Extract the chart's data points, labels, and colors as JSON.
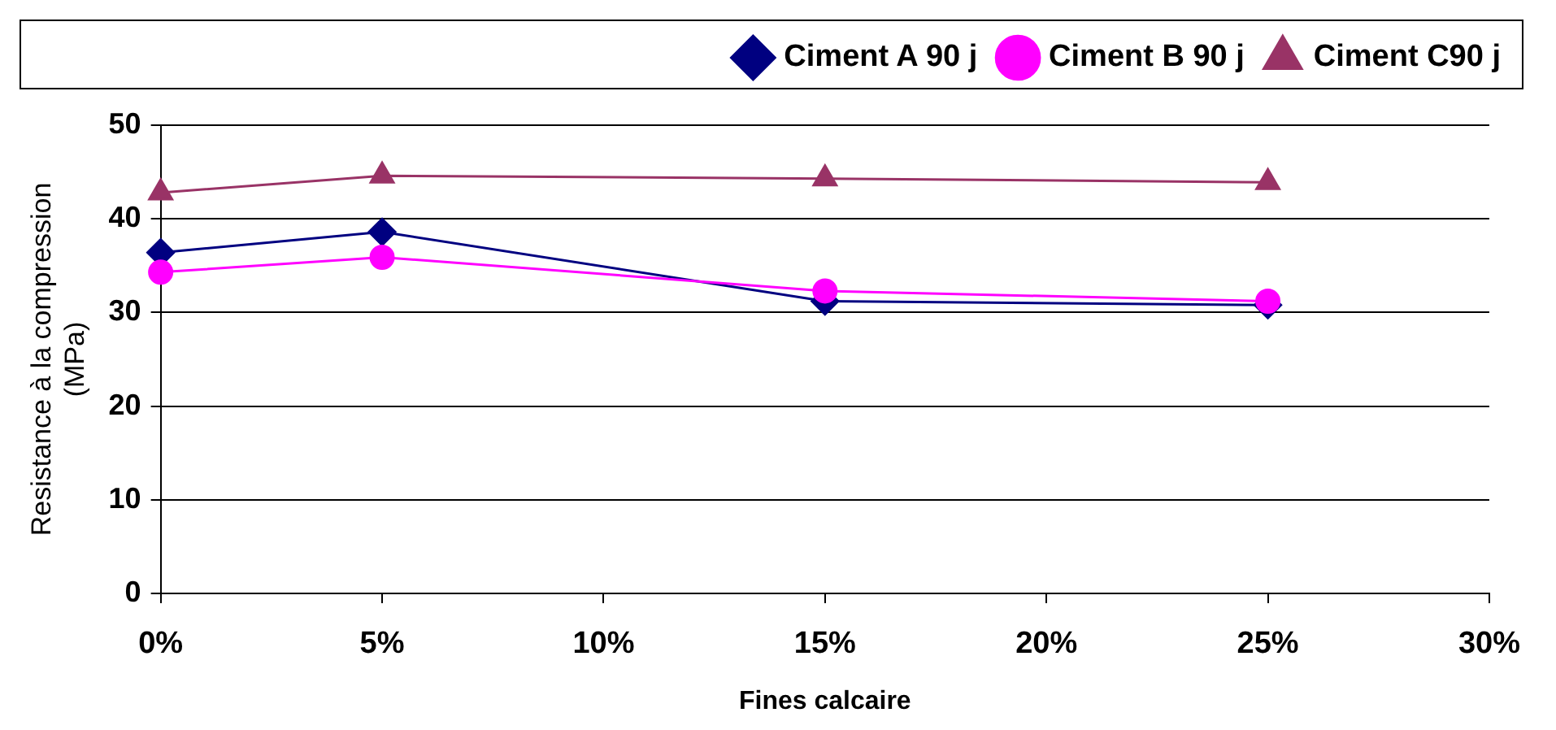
{
  "chart_data": {
    "type": "line",
    "xlabel": "Fines calcaire",
    "ylabel": "Resistance à la compression\n(MPa)",
    "x": [
      0,
      5,
      15,
      25
    ],
    "series": [
      {
        "name": "Ciment A 90 j",
        "color": "#000080",
        "marker": "diamond",
        "values": [
          36.4,
          38.6,
          31.2,
          30.8
        ]
      },
      {
        "name": "Ciment B 90 j",
        "color": "#ff00ff",
        "marker": "circle",
        "values": [
          34.3,
          35.9,
          32.3,
          31.2
        ]
      },
      {
        "name": "Ciment C90 j",
        "color": "#993366",
        "marker": "triangle",
        "values": [
          42.8,
          44.6,
          44.3,
          43.9
        ]
      }
    ],
    "xlim": [
      0,
      30
    ],
    "xticks": [
      {
        "value": 0,
        "label": "0%"
      },
      {
        "value": 5,
        "label": "5%"
      },
      {
        "value": 10,
        "label": "10%"
      },
      {
        "value": 15,
        "label": "15%"
      },
      {
        "value": 20,
        "label": "20%"
      },
      {
        "value": 25,
        "label": "25%"
      },
      {
        "value": 30,
        "label": "30%"
      }
    ],
    "ylim": [
      0,
      50
    ],
    "yticks": [
      0,
      10,
      20,
      30,
      40,
      50
    ],
    "grid": "y",
    "legend": "top",
    "line_style": "solid"
  }
}
